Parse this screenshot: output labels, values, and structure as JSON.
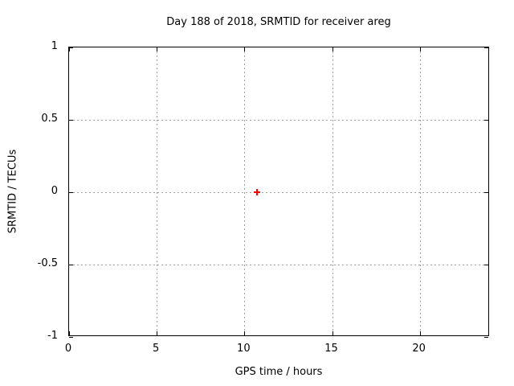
{
  "title": "Day 188 of 2018, SRMTID for receiver areg",
  "chart_data": {
    "type": "scatter",
    "title": "Day 188 of 2018, SRMTID for receiver areg",
    "xlabel": "GPS time / hours",
    "ylabel": "SRMTID / TECUs",
    "xlim": [
      0,
      24
    ],
    "ylim": [
      -1,
      1
    ],
    "xticks": [
      0,
      5,
      10,
      15,
      20
    ],
    "xtick_labels": [
      "0",
      "5",
      "10",
      "15",
      "20"
    ],
    "yticks": [
      -1,
      -0.5,
      0,
      0.5,
      1
    ],
    "ytick_labels": [
      "-1",
      "-0.5",
      "0",
      "0.5",
      "1"
    ],
    "grid": true,
    "legend": false,
    "series": [
      {
        "name": "SRMTID",
        "marker": "plus",
        "color": "#ff0000",
        "points": [
          {
            "x": 10.7,
            "y": 0
          }
        ]
      }
    ],
    "colors": {
      "background": "#ffffff",
      "border": "#000000",
      "grid": "#a0a0a0",
      "text": "#000000"
    }
  }
}
